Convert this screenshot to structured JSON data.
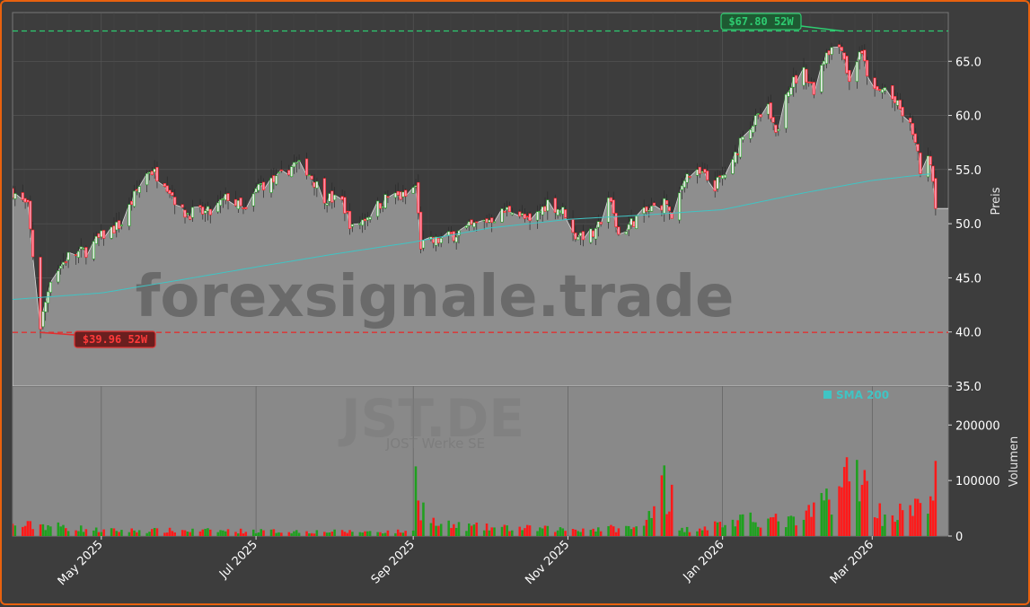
{
  "chart_data": {
    "type": "candlestick",
    "ticker": "JST.DE",
    "company": "JOST Werke SE",
    "watermark": "forexsignale.trade",
    "price_axis_label": "Preis",
    "volume_axis_label": "Volumen",
    "price_ylim": [
      35.0,
      69.5
    ],
    "price_ticks": [
      "35.0",
      "40.0",
      "45.0",
      "50.0",
      "55.0",
      "60.0",
      "65.0"
    ],
    "volume_ylim": [
      0,
      270000
    ],
    "volume_ticks": [
      "0",
      "100000",
      "200000"
    ],
    "x_range": [
      "2025-03-27",
      "2026-03-31"
    ],
    "x_ticks": [
      {
        "date": "2025-05-01",
        "label": "May 2025"
      },
      {
        "date": "2025-07-01",
        "label": "Jul 2025"
      },
      {
        "date": "2025-09-01",
        "label": "Sep 2025"
      },
      {
        "date": "2025-11-01",
        "label": "Nov 2025"
      },
      {
        "date": "2026-01-01",
        "label": "Jan 2026"
      },
      {
        "date": "2026-03-01",
        "label": "Mar 2026"
      }
    ],
    "high_52w": {
      "value": 67.8,
      "label": "$67.80 52W",
      "date": "2026-02-17"
    },
    "low_52w": {
      "value": 39.96,
      "label": "$39.96 52W",
      "date": "2025-04-07"
    },
    "legend": [
      {
        "name": "SMA 200",
        "color": "#40c4c4"
      }
    ],
    "colors": {
      "up": "#1fa01f",
      "down": "#ff1a1a",
      "sma": "#40c4c4",
      "high_line": "#2ecc71",
      "low_line": "#e03030"
    },
    "price_keypoints": [
      [
        "2025-03-27",
        53.0
      ],
      [
        "2025-04-02",
        51.5
      ],
      [
        "2025-04-07",
        40.5
      ],
      [
        "2025-04-11",
        45.0
      ],
      [
        "2025-04-18",
        47.0
      ],
      [
        "2025-04-25",
        47.5
      ],
      [
        "2025-05-02",
        49.0
      ],
      [
        "2025-05-09",
        50.0
      ],
      [
        "2025-05-16",
        53.5
      ],
      [
        "2025-05-20",
        55.0
      ],
      [
        "2025-05-26",
        54.0
      ],
      [
        "2025-06-02",
        51.0
      ],
      [
        "2025-06-13",
        51.0
      ],
      [
        "2025-06-20",
        52.5
      ],
      [
        "2025-06-27",
        51.0
      ],
      [
        "2025-07-02",
        53.5
      ],
      [
        "2025-07-09",
        54.0
      ],
      [
        "2025-07-16",
        55.5
      ],
      [
        "2025-07-21",
        55.0
      ],
      [
        "2025-07-28",
        52.5
      ],
      [
        "2025-08-04",
        52.0
      ],
      [
        "2025-08-08",
        49.5
      ],
      [
        "2025-08-15",
        51.0
      ],
      [
        "2025-08-22",
        52.5
      ],
      [
        "2025-08-29",
        52.5
      ],
      [
        "2025-09-02",
        53.5
      ],
      [
        "2025-09-04",
        48.0
      ],
      [
        "2025-09-12",
        48.5
      ],
      [
        "2025-09-22",
        49.5
      ],
      [
        "2025-10-02",
        50.5
      ],
      [
        "2025-10-10",
        51.5
      ],
      [
        "2025-10-17",
        50.0
      ],
      [
        "2025-10-24",
        52.0
      ],
      [
        "2025-10-31",
        51.0
      ],
      [
        "2025-11-03",
        49.0
      ],
      [
        "2025-11-12",
        49.0
      ],
      [
        "2025-11-17",
        52.5
      ],
      [
        "2025-11-21",
        49.0
      ],
      [
        "2025-11-28",
        50.5
      ],
      [
        "2025-12-05",
        51.5
      ],
      [
        "2025-12-10",
        52.0
      ],
      [
        "2025-12-12",
        50.0
      ],
      [
        "2025-12-17",
        54.5
      ],
      [
        "2025-12-24",
        54.5
      ],
      [
        "2025-12-29",
        53.5
      ],
      [
        "2026-01-05",
        55.5
      ],
      [
        "2026-01-09",
        58.5
      ],
      [
        "2026-01-14",
        59.5
      ],
      [
        "2026-01-19",
        60.5
      ],
      [
        "2026-01-22",
        58.0
      ],
      [
        "2026-01-26",
        62.5
      ],
      [
        "2026-02-02",
        64.0
      ],
      [
        "2026-02-06",
        62.5
      ],
      [
        "2026-02-11",
        66.0
      ],
      [
        "2026-02-17",
        66.5
      ],
      [
        "2026-02-20",
        63.0
      ],
      [
        "2026-02-24",
        66.0
      ],
      [
        "2026-03-02",
        62.0
      ],
      [
        "2026-03-06",
        62.5
      ],
      [
        "2026-03-12",
        60.5
      ],
      [
        "2026-03-17",
        58.5
      ],
      [
        "2026-03-20",
        55.0
      ],
      [
        "2026-03-24",
        56.0
      ],
      [
        "2026-03-26",
        52.0
      ]
    ],
    "sma_keypoints": [
      [
        "2025-03-27",
        43.0
      ],
      [
        "2025-05-01",
        43.6
      ],
      [
        "2025-06-01",
        44.8
      ],
      [
        "2025-07-01",
        46.0
      ],
      [
        "2025-08-01",
        47.2
      ],
      [
        "2025-09-01",
        48.3
      ],
      [
        "2025-10-01",
        49.6
      ],
      [
        "2025-11-01",
        50.4
      ],
      [
        "2025-12-01",
        50.8
      ],
      [
        "2026-01-01",
        51.3
      ],
      [
        "2026-02-01",
        52.8
      ],
      [
        "2026-03-01",
        54.0
      ],
      [
        "2026-03-24",
        54.6
      ]
    ],
    "volume_keypoints": [
      [
        "2025-03-27",
        18000
      ],
      [
        "2025-04-08",
        20000
      ],
      [
        "2025-05-01",
        10000
      ],
      [
        "2025-06-01",
        10000
      ],
      [
        "2025-08-01",
        8000
      ],
      [
        "2025-09-01",
        8000
      ],
      [
        "2025-09-02",
        230000
      ],
      [
        "2025-09-03",
        60000
      ],
      [
        "2025-09-10",
        20000
      ],
      [
        "2025-10-01",
        15000
      ],
      [
        "2025-11-01",
        12000
      ],
      [
        "2025-12-01",
        15000
      ],
      [
        "2025-12-09",
        135000
      ],
      [
        "2025-12-10",
        50000
      ],
      [
        "2025-12-11",
        85000
      ],
      [
        "2025-12-15",
        10000
      ],
      [
        "2026-01-05",
        25000
      ],
      [
        "2026-01-15",
        30000
      ],
      [
        "2026-02-01",
        25000
      ],
      [
        "2026-02-23",
        120000
      ],
      [
        "2026-02-25",
        100000
      ],
      [
        "2026-03-05",
        35000
      ],
      [
        "2026-03-20",
        50000
      ],
      [
        "2026-03-26",
        95000
      ]
    ]
  }
}
